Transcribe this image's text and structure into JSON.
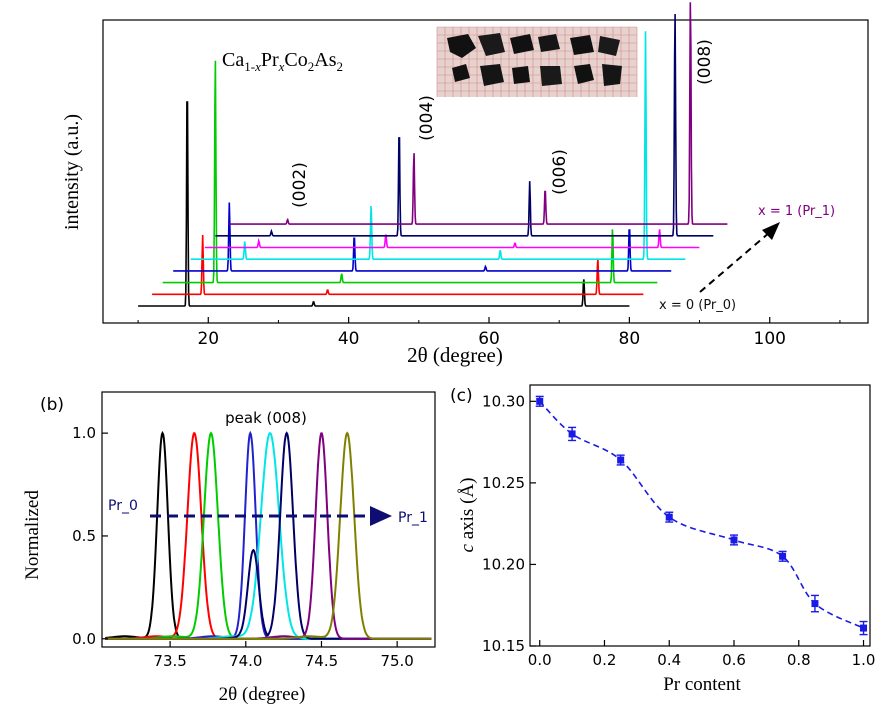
{
  "chart_data": [
    {
      "panel": "a",
      "type": "line",
      "title_parts": {
        "ca": "Ca",
        "sub1": "1-",
        "x1": "x",
        "pr": "Pr",
        "x2": "x",
        "co": "Co",
        "sub2": "2",
        "as": "As",
        "sub3": "2"
      },
      "xlabel": "2θ (degree)",
      "ylabel": "intensity (a.u.)",
      "xlim": [
        5,
        114
      ],
      "xticks": [
        20,
        40,
        60,
        80,
        100
      ],
      "grid": false,
      "peak_labels": [
        "(002)",
        "(004)",
        "(006)",
        "(008)"
      ],
      "annotations": {
        "bottom": "x = 0 (Pr_0)",
        "top": "x = 1 (Pr_1)"
      },
      "series": [
        {
          "color": "#000000",
          "x_start": 10.0,
          "x_end": 80.0,
          "peaks": [
            [
              17.0,
              1.0
            ],
            [
              73.5,
              0.12
            ],
            [
              35.0,
              0.02
            ]
          ]
        },
        {
          "color": "#ff0000",
          "x_start": 12.0,
          "x_end": 82.0,
          "peaks": [
            [
              19.2,
              0.26
            ],
            [
              75.5,
              0.16
            ],
            [
              37.0,
              0.02
            ]
          ]
        },
        {
          "color": "#00cc00",
          "x_start": 13.5,
          "x_end": 84.0,
          "peaks": [
            [
              21.0,
              1.0
            ],
            [
              77.6,
              0.24
            ],
            [
              39.0,
              0.04
            ]
          ]
        },
        {
          "color": "#0000cc",
          "x_start": 15.0,
          "x_end": 86.0,
          "peaks": [
            [
              23.0,
              0.3
            ],
            [
              40.8,
              0.16
            ],
            [
              80.0,
              0.2
            ],
            [
              59.5,
              0.02
            ]
          ]
        },
        {
          "color": "#00e6e6",
          "x_start": 17.5,
          "x_end": 88.0,
          "peaks": [
            [
              25.2,
              0.08
            ],
            [
              43.2,
              0.24
            ],
            [
              82.3,
              1.0
            ],
            [
              61.6,
              0.04
            ]
          ]
        },
        {
          "color": "#ff00ff",
          "x_start": 19.5,
          "x_end": 90.0,
          "peaks": [
            [
              27.2,
              0.03
            ],
            [
              45.3,
              0.06
            ],
            [
              84.3,
              0.08
            ],
            [
              63.7,
              0.02
            ]
          ]
        },
        {
          "color": "#000066",
          "x_start": 21.0,
          "x_end": 92.0,
          "peaks": [
            [
              47.2,
              0.48
            ],
            [
              65.8,
              0.24
            ],
            [
              86.5,
              1.0
            ],
            [
              29.0,
              0.02
            ]
          ]
        },
        {
          "color": "#800080",
          "x_start": 23.0,
          "x_end": 94.0,
          "peaks": [
            [
              31.3,
              0.02
            ],
            [
              49.3,
              0.32
            ],
            [
              68.0,
              0.16
            ],
            [
              88.7,
              1.0
            ]
          ]
        }
      ],
      "inset_photo": "crystal photo on grid"
    },
    {
      "panel": "b",
      "panel_label": "(b)",
      "type": "line",
      "title": "peak (008)",
      "xlabel": "2θ (degree)",
      "ylabel": "Normalized",
      "xlim": [
        73.05,
        75.25
      ],
      "ylim": [
        -0.04,
        1.2
      ],
      "xticks": [
        "73.5",
        "74.0",
        "74.5",
        "75.0"
      ],
      "yticks": [
        "0.0",
        "0.5",
        "1.0"
      ],
      "arrow_labels": {
        "left": "Pr_0",
        "right": "Pr_1"
      },
      "series": [
        {
          "color": "#000000",
          "center": 73.45,
          "width": 0.05,
          "shoulder": null
        },
        {
          "color": "#ff0000",
          "center": 73.66,
          "width": 0.065,
          "shoulder": null
        },
        {
          "color": "#00cc00",
          "center": 73.77,
          "width": 0.065,
          "shoulder": null
        },
        {
          "color": "#2222cc",
          "center": 74.03,
          "width": 0.05,
          "shoulder": null
        },
        {
          "color": "#00e6e6",
          "center": 74.16,
          "width": 0.085,
          "shoulder": null
        },
        {
          "color": "#000066",
          "center": 74.27,
          "width": 0.06,
          "shoulder": [
            74.05,
            0.42
          ]
        },
        {
          "color": "#800080",
          "center": 74.5,
          "width": 0.055,
          "shoulder": null
        },
        {
          "color": "#808000",
          "center": 74.67,
          "width": 0.065,
          "shoulder": null
        }
      ]
    },
    {
      "panel": "c",
      "panel_label": "(c)",
      "type": "scatter",
      "xlabel": "Pr content",
      "ylabel_italic": "c",
      "ylabel_rest": " axis (Å)",
      "xlim": [
        -0.03,
        1.02
      ],
      "ylim": [
        10.15,
        10.31
      ],
      "xticks": [
        "0.0",
        "0.2",
        "0.4",
        "0.6",
        "0.8",
        "1.0"
      ],
      "yticks": [
        "10.15",
        "10.20",
        "10.25",
        "10.30"
      ],
      "color": "#1a1ae6",
      "x": [
        0.0,
        0.1,
        0.25,
        0.4,
        0.6,
        0.75,
        0.85,
        1.0
      ],
      "y": [
        10.3,
        10.28,
        10.264,
        10.229,
        10.215,
        10.205,
        10.176,
        10.161
      ],
      "yerr": [
        0.003,
        0.004,
        0.003,
        0.003,
        0.003,
        0.003,
        0.005,
        0.004
      ]
    }
  ]
}
